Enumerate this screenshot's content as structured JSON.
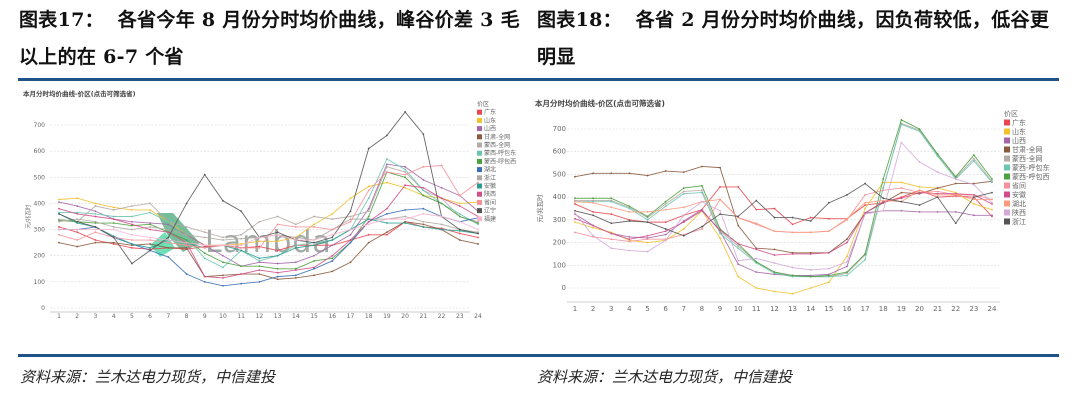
{
  "figures": [
    {
      "caption_label": "图表17：",
      "caption_text": "各省今年 8 月份分时均价曲线，峰谷价差 3 毛以上的在 6-7 个省",
      "source": "资料来源：兰木达电力现货，中信建投"
    },
    {
      "caption_label": "图表18：",
      "caption_text": "各省 2 月份分时均价曲线，因负荷较低，低谷更明显",
      "source": "资料来源：兰木达电力现货，中信建投"
    }
  ],
  "watermark": "Lambda",
  "chart_data": [
    {
      "type": "line",
      "title": "本月分时均价曲线-价区(点击可筛选省)",
      "xlabel": "",
      "ylabel": "元/兆瓦时",
      "ylim": [
        0,
        750
      ],
      "yticks": [
        0,
        100,
        200,
        300,
        400,
        500,
        600,
        700
      ],
      "legend_title": "价区",
      "legend_placement": "right",
      "grid": true,
      "x": [
        1,
        2,
        3,
        4,
        5,
        6,
        7,
        8,
        9,
        10,
        11,
        12,
        13,
        14,
        15,
        16,
        17,
        18,
        19,
        20,
        21,
        22,
        23,
        24
      ],
      "series": [
        {
          "name": "广东",
          "color": "#e8474f",
          "values": [
            310,
            290,
            260,
            245,
            230,
            225,
            230,
            225,
            235,
            240,
            230,
            235,
            220,
            240,
            240,
            240,
            260,
            280,
            280,
            330,
            310,
            305,
            285,
            270
          ]
        },
        {
          "name": "山东",
          "color": "#f2c12e",
          "values": [
            415,
            420,
            400,
            385,
            375,
            375,
            330,
            280,
            240,
            240,
            245,
            255,
            255,
            270,
            320,
            360,
            420,
            465,
            480,
            460,
            430,
            420,
            400,
            405
          ]
        },
        {
          "name": "山西",
          "color": "#a566a8",
          "values": [
            405,
            390,
            370,
            340,
            330,
            325,
            320,
            280,
            240,
            200,
            160,
            175,
            170,
            175,
            200,
            240,
            280,
            380,
            550,
            540,
            490,
            460,
            430,
            370
          ]
        },
        {
          "name": "甘肃-全网",
          "color": "#8b5a3c",
          "values": [
            250,
            235,
            250,
            250,
            240,
            245,
            230,
            230,
            120,
            125,
            130,
            130,
            110,
            115,
            125,
            140,
            175,
            250,
            290,
            330,
            320,
            300,
            260,
            245
          ]
        },
        {
          "name": "蒙西-全网",
          "color": "#b5aaa5",
          "values": [
            340,
            330,
            390,
            375,
            390,
            400,
            330,
            310,
            290,
            270,
            280,
            330,
            350,
            320,
            350,
            340,
            350,
            370,
            540,
            520,
            450,
            420,
            350,
            330
          ]
        },
        {
          "name": "蒙西-呼包东",
          "color": "#6cc5b0",
          "values": [
            365,
            365,
            360,
            350,
            350,
            365,
            330,
            270,
            190,
            155,
            220,
            180,
            200,
            240,
            250,
            260,
            300,
            420,
            570,
            530,
            450,
            400,
            360,
            320
          ]
        },
        {
          "name": "蒙西-呼包西",
          "color": "#4da13e",
          "values": [
            335,
            330,
            325,
            325,
            315,
            320,
            290,
            260,
            210,
            175,
            160,
            160,
            150,
            150,
            180,
            190,
            250,
            350,
            520,
            500,
            430,
            400,
            350,
            325
          ]
        },
        {
          "name": "湖北",
          "color": "#3b6fb6",
          "values": [
            300,
            300,
            310,
            270,
            245,
            220,
            195,
            130,
            100,
            85,
            93,
            100,
            120,
            125,
            150,
            180,
            250,
            330,
            360,
            375,
            380,
            350,
            330,
            345
          ]
        },
        {
          "name": "浙江",
          "color": "#b0a8a0",
          "values": [
            330,
            340,
            330,
            310,
            300,
            310,
            300,
            280,
            270,
            260,
            265,
            270,
            280,
            270,
            260,
            300,
            340,
            340,
            340,
            350,
            330,
            320,
            300,
            290
          ]
        },
        {
          "name": "安徽",
          "color": "#2a9d8f",
          "values": [
            360,
            325,
            310,
            275,
            245,
            230,
            260,
            250,
            230,
            240,
            220,
            190,
            200,
            230,
            240,
            260,
            300,
            340,
            325,
            325,
            310,
            300,
            295,
            285
          ]
        },
        {
          "name": "陕西",
          "color": "#d04f8a",
          "values": [
            380,
            360,
            350,
            340,
            320,
            300,
            290,
            250,
            120,
            115,
            130,
            145,
            135,
            145,
            155,
            200,
            260,
            330,
            380,
            470,
            460,
            420,
            390,
            350
          ]
        },
        {
          "name": "省间",
          "color": "#f5919a",
          "values": [
            280,
            260,
            290,
            270,
            260,
            260,
            250,
            240,
            230,
            240,
            230,
            230,
            320,
            310,
            310,
            300,
            330,
            450,
            520,
            510,
            540,
            545,
            430,
            480
          ]
        },
        {
          "name": "辽宁",
          "color": "#555555",
          "values": [
            360,
            330,
            310,
            270,
            170,
            220,
            270,
            400,
            510,
            410,
            370,
            270,
            290,
            260,
            250,
            270,
            370,
            610,
            660,
            750,
            665,
            350,
            300,
            285
          ]
        },
        {
          "name": "福建",
          "color": "#f7b6d2",
          "values": [
            300,
            300,
            300,
            300,
            280,
            270,
            260,
            250,
            240,
            240,
            240,
            270,
            280,
            260,
            260,
            280,
            300,
            320,
            340,
            340,
            360,
            350,
            330,
            300
          ]
        }
      ]
    },
    {
      "type": "line",
      "title": "本月分时均价曲线-价区(点击可筛选省)",
      "xlabel": "",
      "ylabel": "元/兆瓦时",
      "ylim": [
        -50,
        750
      ],
      "yticks": [
        0,
        100,
        200,
        300,
        400,
        500,
        600,
        700
      ],
      "legend_title": "价区",
      "legend_placement": "right",
      "grid": true,
      "x": [
        1,
        2,
        3,
        4,
        5,
        6,
        7,
        8,
        9,
        10,
        11,
        12,
        13,
        14,
        15,
        16,
        17,
        18,
        19,
        20,
        21,
        22,
        23,
        24
      ],
      "series": [
        {
          "name": "广东",
          "color": "#e8474f",
          "values": [
            370,
            335,
            325,
            300,
            290,
            290,
            320,
            345,
            445,
            445,
            345,
            350,
            280,
            310,
            305,
            305,
            365,
            375,
            400,
            430,
            400,
            405,
            400,
            315
          ]
        },
        {
          "name": "山东",
          "color": "#f2c12e",
          "values": [
            290,
            265,
            245,
            210,
            200,
            210,
            260,
            340,
            220,
            50,
            0,
            -15,
            -25,
            0,
            25,
            140,
            350,
            465,
            465,
            445,
            440,
            420,
            370,
            345
          ]
        },
        {
          "name": "山西",
          "color": "#a566a8",
          "values": [
            325,
            275,
            240,
            225,
            220,
            235,
            295,
            345,
            250,
            105,
            70,
            60,
            55,
            55,
            60,
            95,
            330,
            340,
            340,
            335,
            335,
            335,
            320,
            320
          ]
        },
        {
          "name": "甘肃-全网",
          "color": "#8b5a3c",
          "values": [
            490,
            505,
            505,
            505,
            495,
            515,
            510,
            535,
            530,
            275,
            175,
            170,
            155,
            155,
            155,
            215,
            330,
            375,
            420,
            415,
            440,
            460,
            460,
            470
          ]
        },
        {
          "name": "蒙西-全网",
          "color": "#b5aaa5",
          "values": [
            385,
            385,
            385,
            355,
            310,
            370,
            425,
            430,
            250,
            185,
            115,
            70,
            55,
            50,
            50,
            65,
            145,
            440,
            725,
            695,
            585,
            485,
            570,
            470
          ]
        },
        {
          "name": "蒙西-呼包东",
          "color": "#6cc5b0",
          "values": [
            380,
            380,
            380,
            350,
            300,
            360,
            415,
            420,
            240,
            175,
            110,
            65,
            50,
            50,
            50,
            55,
            125,
            440,
            720,
            690,
            580,
            480,
            560,
            465
          ]
        },
        {
          "name": "蒙西-呼包西",
          "color": "#4da13e",
          "values": [
            395,
            395,
            395,
            360,
            315,
            380,
            440,
            450,
            260,
            195,
            115,
            70,
            55,
            50,
            55,
            70,
            150,
            480,
            740,
            700,
            590,
            490,
            585,
            480
          ]
        },
        {
          "name": "省间",
          "color": "#f5919a",
          "values": [
            245,
            225,
            215,
            205,
            215,
            215,
            235,
            260,
            390,
            310,
            280,
            250,
            245,
            245,
            250,
            300,
            410,
            430,
            440,
            420,
            425,
            410,
            410,
            390
          ]
        },
        {
          "name": "安徽",
          "color": "#d04f8a",
          "values": [
            305,
            275,
            240,
            215,
            230,
            250,
            290,
            340,
            255,
            195,
            170,
            145,
            150,
            150,
            155,
            200,
            330,
            380,
            395,
            420,
            415,
            415,
            410,
            370
          ]
        },
        {
          "name": "湖北",
          "color": "#fb9a7f",
          "values": [
            380,
            375,
            355,
            335,
            335,
            345,
            355,
            380,
            390,
            310,
            285,
            250,
            245,
            245,
            250,
            305,
            375,
            385,
            380,
            430,
            410,
            410,
            390,
            390
          ]
        },
        {
          "name": "陕西",
          "color": "#d6a8d8",
          "values": [
            330,
            230,
            175,
            165,
            160,
            210,
            320,
            380,
            340,
            120,
            130,
            110,
            90,
            80,
            85,
            115,
            325,
            340,
            640,
            555,
            510,
            480,
            455,
            375
          ]
        },
        {
          "name": "浙江",
          "color": "#555555",
          "values": [
            340,
            320,
            285,
            295,
            290,
            260,
            230,
            270,
            325,
            315,
            385,
            310,
            310,
            295,
            375,
            410,
            460,
            395,
            380,
            365,
            400,
            285,
            400,
            420
          ]
        }
      ]
    }
  ]
}
